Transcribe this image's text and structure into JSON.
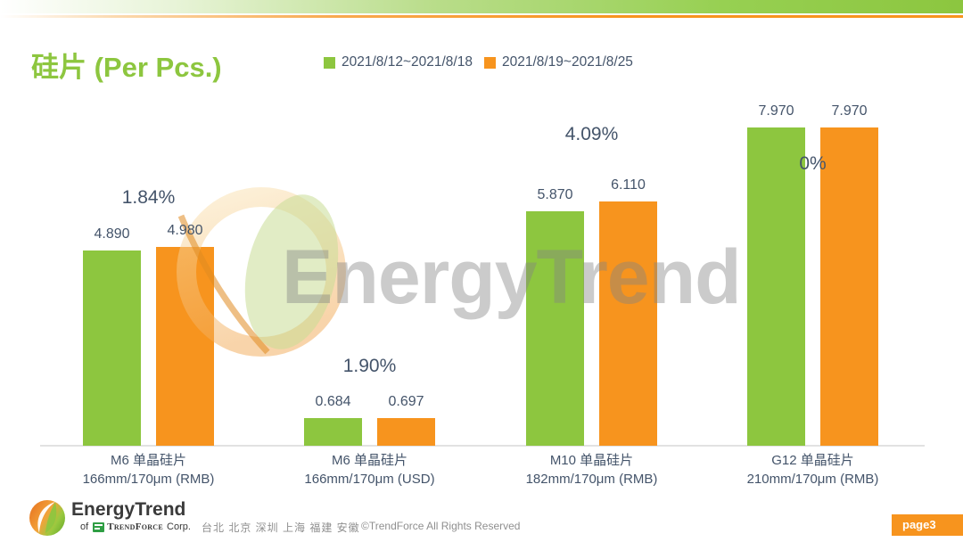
{
  "title": "硅片 (Per Pcs.)",
  "colors": {
    "series1_green": "#8dc63f",
    "series2_orange": "#f7941e",
    "label_dark": "#44546a",
    "title_green": "#8dc63f",
    "badge_orange": "#f7941e"
  },
  "chart_data": {
    "type": "bar",
    "title": "硅片 (Per Pcs.)",
    "legend_position": "top",
    "grid": false,
    "ylim": [
      0,
      8.5
    ],
    "categories": [
      {
        "name": "M6 单晶硅片",
        "spec": "166mm/170μm (RMB)"
      },
      {
        "name": "M6 单晶硅片",
        "spec": "166mm/170μm (USD)"
      },
      {
        "name": "M10 单晶硅片",
        "spec": "182mm/170μm (RMB)"
      },
      {
        "name": "G12 单晶硅片",
        "spec": "210mm/170μm  (RMB)"
      }
    ],
    "series": [
      {
        "name": "2021/8/12~2021/8/18",
        "color": "#8dc63f",
        "values": [
          4.89,
          0.684,
          5.87,
          7.97
        ],
        "labels": [
          "4.890",
          "0.684",
          "5.870",
          "7.970"
        ]
      },
      {
        "name": "2021/8/19~2021/8/25",
        "color": "#f7941e",
        "values": [
          4.98,
          0.697,
          6.11,
          7.97
        ],
        "labels": [
          "4.980",
          "0.697",
          "6.110",
          "7.970"
        ]
      }
    ],
    "change_labels": [
      "1.84%",
      "1.90%",
      "4.09%",
      "0%"
    ]
  },
  "watermark": {
    "text": "EnergyTrend"
  },
  "footer": {
    "logo_name": "EnergyTrend",
    "logo_sub_prefix": "of",
    "logo_sub_name": "TrendForce",
    "logo_sub_suffix": "Corp.",
    "cities": "台北 北京 深圳 上海 福建 安徽",
    "copyright": "©TrendForce All Rights Reserved",
    "page_badge": "page3"
  }
}
